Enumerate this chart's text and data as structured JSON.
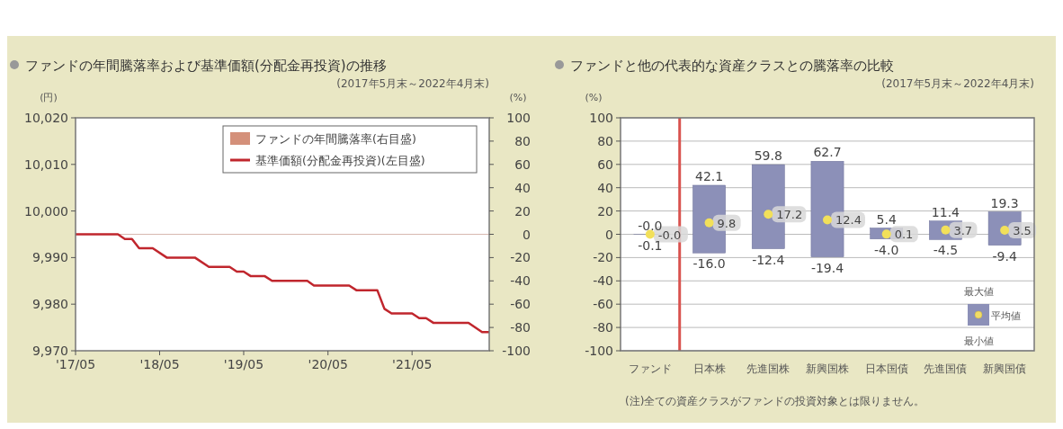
{
  "chart_data": [
    {
      "type": "line",
      "title": "ファンドの年間騰落率および基準価額(分配金再投資)の推移",
      "subtitle": "(2017年5月末～2022年4月末)",
      "ylabel": "(円)",
      "y2label": "(%)",
      "xlim": [
        "2017-05",
        "2022-04"
      ],
      "xticks": [
        {
          "value": "2017-05",
          "label": "'17/05"
        },
        {
          "value": "2018-05",
          "label": "'18/05"
        },
        {
          "value": "2019-05",
          "label": "'19/05"
        },
        {
          "value": "2020-05",
          "label": "'20/05"
        },
        {
          "value": "2021-05",
          "label": "'21/05"
        }
      ],
      "ylim": [
        9970,
        10020
      ],
      "yticks": [
        {
          "value": 9970,
          "label": "9,970"
        },
        {
          "value": 9980,
          "label": "9,980"
        },
        {
          "value": 9990,
          "label": "9,990"
        },
        {
          "value": 10000,
          "label": "10,000"
        },
        {
          "value": 10010,
          "label": "10,010"
        },
        {
          "value": 10020,
          "label": "10,020"
        }
      ],
      "y2lim": [
        -100,
        100
      ],
      "y2ticks": [
        -100,
        -80,
        -60,
        -40,
        -20,
        0,
        20,
        40,
        60,
        80,
        100
      ],
      "ref_lines": [
        {
          "axis": "y2",
          "value": 0,
          "color": "#d8b8b0"
        }
      ],
      "legend": "top right",
      "grid": false,
      "series": [
        {
          "name": "ファンドの年間騰落率(右目盛)",
          "type": "bar",
          "color": "#d4907a"
        },
        {
          "name": "基準価額(分配金再投資)(左目盛)",
          "color": "#c0262d",
          "x": [
            "2017-05",
            "2017-11",
            "2017-12",
            "2018-01",
            "2018-02",
            "2018-04",
            "2018-06",
            "2018-10",
            "2018-12",
            "2019-03",
            "2019-04",
            "2019-05",
            "2019-06",
            "2019-08",
            "2019-09",
            "2020-02",
            "2020-03",
            "2020-08",
            "2020-09",
            "2020-12",
            "2021-01",
            "2021-02",
            "2021-05",
            "2021-06",
            "2021-07",
            "2021-08",
            "2022-01",
            "2022-03",
            "2022-04"
          ],
          "values": [
            9995,
            9995,
            9994,
            9994,
            9992,
            9992,
            9990,
            9990,
            9988,
            9988,
            9987,
            9987,
            9986,
            9986,
            9985,
            9985,
            9984,
            9984,
            9983,
            9983,
            9979,
            9978,
            9978,
            9977,
            9977,
            9976,
            9976,
            9974,
            9974
          ]
        }
      ]
    },
    {
      "type": "bar",
      "title": "ファンドと他の代表的な資産クラスとの騰落率の比較",
      "subtitle": "(2017年5月末～2022年4月末)",
      "ylabel": "(%)",
      "categories": [
        "ファンド",
        "日本株",
        "先進国株",
        "新興国株",
        "日本国債",
        "先進国債",
        "新興国債"
      ],
      "ylim": [
        -100,
        100
      ],
      "yticks": [
        -100,
        -80,
        -60,
        -40,
        -20,
        0,
        20,
        40,
        60,
        80,
        100
      ],
      "grid": "y",
      "series": [
        {
          "color": "#8c90b8",
          "base": [
            -0.1,
            -16.0,
            -12.4,
            -19.4,
            -4.0,
            -4.5,
            -9.4
          ],
          "values": [
            0.1,
            58.1,
            72.2,
            82.1,
            9.4,
            15.9,
            28.7
          ]
        },
        {
          "type": "scatter",
          "color": "#f2e05a",
          "marker": "circle",
          "x": [
            "ファンド",
            "日本株",
            "先進国株",
            "新興国株",
            "日本国債",
            "先進国債",
            "新興国債"
          ],
          "values": [
            -0.0,
            9.8,
            17.2,
            12.4,
            0.1,
            3.7,
            3.5
          ],
          "value_labels": [
            "-0.0",
            "9.8",
            "17.2",
            "12.4",
            "0.1",
            "3.7",
            "3.5"
          ]
        }
      ],
      "annotations": [
        {
          "text": "-0.0",
          "x": "ファンド",
          "y": -0.0
        },
        {
          "text": "-0.1",
          "x": "ファンド",
          "y": -0.1
        },
        {
          "text": "42.1",
          "x": "日本株",
          "y": 42.1
        },
        {
          "text": "-16.0",
          "x": "日本株",
          "y": -16.0
        },
        {
          "text": "59.8",
          "x": "先進国株",
          "y": 59.8
        },
        {
          "text": "-12.4",
          "x": "先進国株",
          "y": -12.4
        },
        {
          "text": "62.7",
          "x": "新興国株",
          "y": 62.7
        },
        {
          "text": "-19.4",
          "x": "新興国株",
          "y": -19.4
        },
        {
          "text": "5.4",
          "x": "日本国債",
          "y": 5.4
        },
        {
          "text": "-4.0",
          "x": "日本国債",
          "y": -4.0
        },
        {
          "text": "11.4",
          "x": "先進国債",
          "y": 11.4
        },
        {
          "text": "-4.5",
          "x": "先進国債",
          "y": -4.5
        },
        {
          "text": "19.3",
          "x": "新興国債",
          "y": 19.3
        },
        {
          "text": "-9.4",
          "x": "新興国債",
          "y": -9.4
        },
        "最大値",
        "平均値",
        "最小値",
        "(注)全ての資産クラスがファンドの投資対象とは限りません。"
      ]
    }
  ]
}
